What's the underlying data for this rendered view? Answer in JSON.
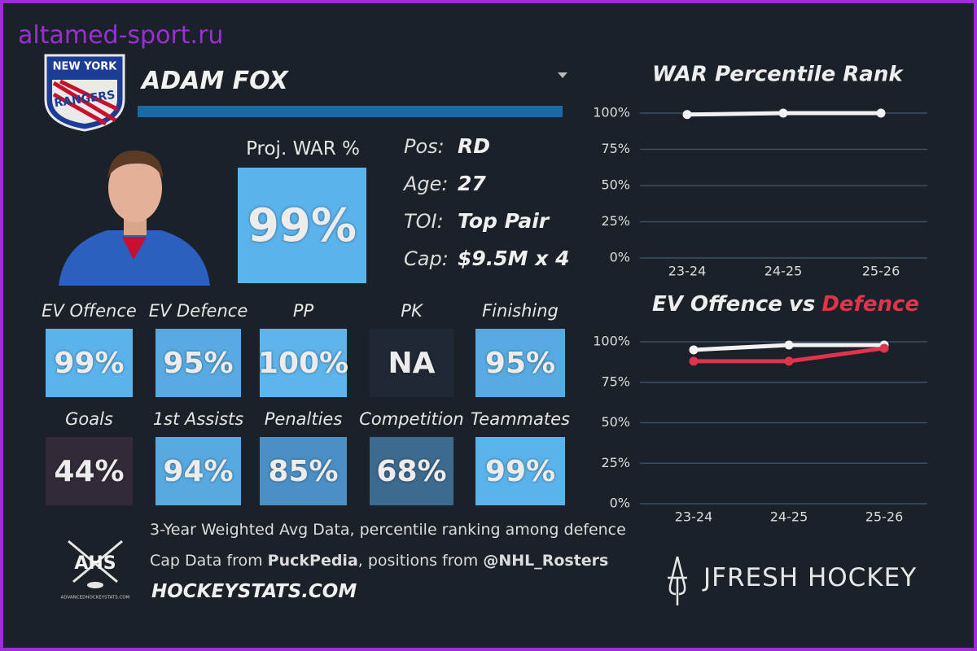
{
  "watermark": "altamed-sport.ru",
  "logo": {
    "line1": "NEW YORK",
    "line2": "RANGERS"
  },
  "player": {
    "name": "ADAM FOX"
  },
  "proj_war": {
    "label": "Proj. WAR %",
    "value": "99%"
  },
  "info": [
    {
      "label": "Pos:",
      "value": "RD"
    },
    {
      "label": "Age:",
      "value": "27"
    },
    {
      "label": "TOI:",
      "value": "Top Pair"
    },
    {
      "label": "Cap:",
      "value": "$9.5M x 4"
    }
  ],
  "tiles": [
    {
      "label": "EV Offence",
      "value": "99%",
      "color": "#5bb3eb"
    },
    {
      "label": "EV Defence",
      "value": "95%",
      "color": "#58abe2"
    },
    {
      "label": "PP",
      "value": "100%",
      "color": "#5db5ec"
    },
    {
      "label": "PK",
      "value": "NA",
      "color": "#1f2935"
    },
    {
      "label": "Finishing",
      "value": "95%",
      "color": "#58abe2"
    },
    {
      "label": "Goals",
      "value": "44%",
      "color": "#332a38"
    },
    {
      "label": "1st Assists",
      "value": "94%",
      "color": "#57a9e0"
    },
    {
      "label": "Penalties",
      "value": "85%",
      "color": "#4b90c5"
    },
    {
      "label": "Competition",
      "value": "68%",
      "color": "#3d6a8f"
    },
    {
      "label": "Teammates",
      "value": "99%",
      "color": "#5bb3eb"
    }
  ],
  "footer": {
    "note": "3-Year Weighted Avg Data, percentile ranking among defence",
    "cap_prefix": "Cap Data from ",
    "cap_source": "PuckPedia",
    "positions_prefix": ", positions from ",
    "positions_source": "@NHL_Rosters",
    "site": "HOCKEYSTATS.COM",
    "ahs": "AHS",
    "ahs_site": "ADVANCEDHOCKEYSTATS.COM",
    "brand": "JFRESH HOCKEY"
  },
  "chart_data": [
    {
      "type": "line",
      "title": "WAR Percentile Rank",
      "categories": [
        "23-24",
        "24-25",
        "25-26"
      ],
      "series": [
        {
          "name": "WAR Percentile Rank",
          "color": "#f2f2f2",
          "values": [
            99,
            100,
            100
          ]
        }
      ],
      "ylim": [
        0,
        100
      ],
      "yticks": [
        {
          "value": 0,
          "label": "0%"
        },
        {
          "value": 25,
          "label": "25%"
        },
        {
          "value": 50,
          "label": "50%"
        },
        {
          "value": 75,
          "label": "75%"
        },
        {
          "value": 100,
          "label": "100%"
        }
      ],
      "grid": true
    },
    {
      "type": "line",
      "title_joiner": "vs",
      "categories": [
        "23-24",
        "24-25",
        "25-26"
      ],
      "series": [
        {
          "name": "EV Offence",
          "color": "#f2f2f2",
          "values": [
            95,
            98,
            98
          ]
        },
        {
          "name": "Defence",
          "color": "#e0344c",
          "values": [
            88,
            88,
            96
          ]
        }
      ],
      "ylim": [
        0,
        100
      ],
      "yticks": [
        {
          "value": 0,
          "label": "0%"
        },
        {
          "value": 25,
          "label": "25%"
        },
        {
          "value": 50,
          "label": "50%"
        },
        {
          "value": 75,
          "label": "75%"
        },
        {
          "value": 100,
          "label": "100%"
        }
      ],
      "grid": true
    }
  ]
}
